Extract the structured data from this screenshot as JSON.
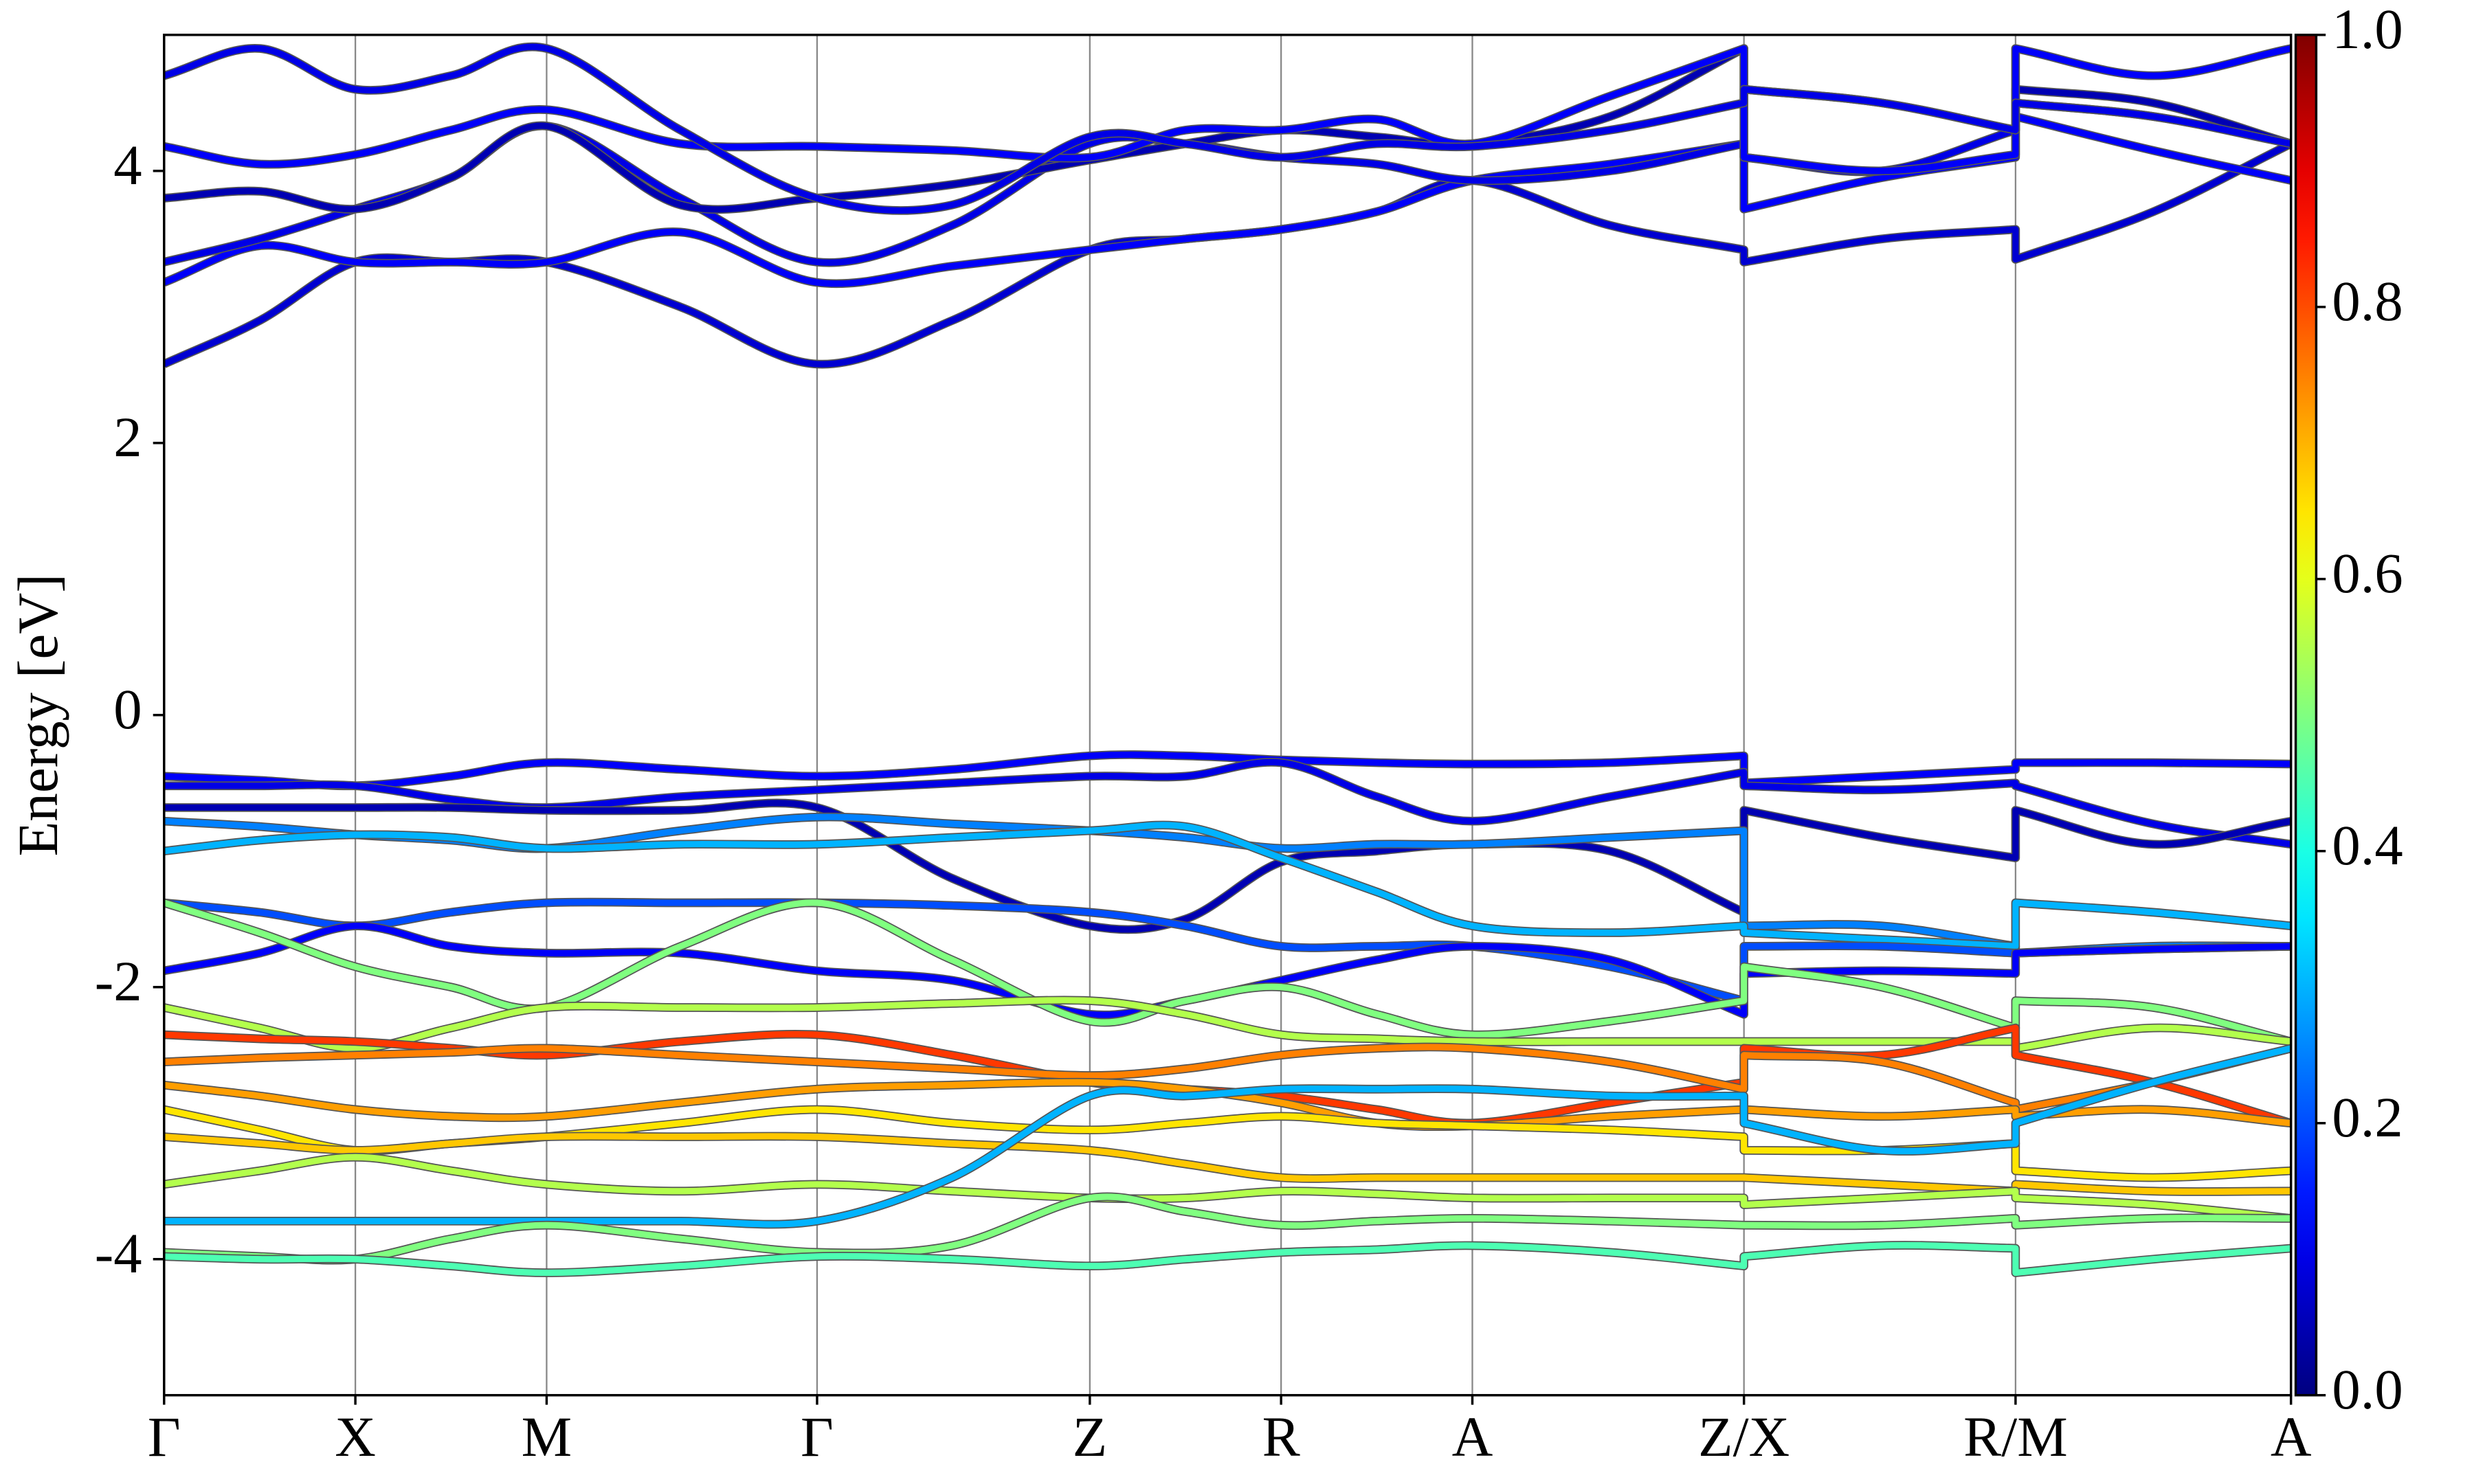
{
  "chart_data": {
    "type": "line",
    "ylabel": "Energy [eV]",
    "x": [
      0,
      0.25,
      0.5,
      0.75,
      1.0,
      1.35,
      1.707,
      2.06,
      2.42,
      2.67,
      2.92,
      3.17,
      3.42,
      3.78,
      4.13,
      4.13,
      4.49,
      4.84,
      4.84,
      5.2,
      5.56
    ],
    "xlim": [
      0,
      5.56
    ],
    "xticks": [
      {
        "value": 0,
        "label": "Γ"
      },
      {
        "value": 0.5,
        "label": "X"
      },
      {
        "value": 1.0,
        "label": "M"
      },
      {
        "value": 1.707,
        "label": "Γ"
      },
      {
        "value": 2.42,
        "label": "Z"
      },
      {
        "value": 2.92,
        "label": "R"
      },
      {
        "value": 3.42,
        "label": "A"
      },
      {
        "value": 4.13,
        "label": "Z/X"
      },
      {
        "value": 4.84,
        "label": "R/M"
      },
      {
        "value": 5.56,
        "label": "A"
      }
    ],
    "ylim": [
      -5,
      5
    ],
    "yticks": [
      -4,
      -2,
      0,
      2,
      4
    ],
    "grid": true,
    "colormap": "jet",
    "colorbar": {
      "lim": [
        0,
        1
      ],
      "ticks": [
        {
          "value": 0,
          "label": "0.0"
        },
        0.2,
        0.4,
        0.6,
        0.8,
        {
          "value": 1,
          "label": "1.0"
        }
      ]
    },
    "series": [
      {
        "weight": 0.08,
        "values": [
          2.58,
          2.9,
          3.33,
          3.33,
          3.33,
          3.0,
          2.58,
          2.9,
          3.42,
          3.5,
          3.57,
          3.7,
          3.93,
          3.6,
          3.42,
          3.33,
          3.5,
          3.57,
          3.35,
          3.7,
          4.2
        ]
      },
      {
        "weight": 0.12,
        "values": [
          3.18,
          3.45,
          3.33,
          3.33,
          3.33,
          3.55,
          3.18,
          3.3,
          3.42,
          3.5,
          3.57,
          3.7,
          3.93,
          4.05,
          4.2,
          3.72,
          3.95,
          4.1,
          4.4,
          4.15,
          3.93
        ]
      },
      {
        "weight": 0.1,
        "values": [
          3.33,
          3.5,
          3.72,
          3.95,
          4.33,
          3.8,
          3.33,
          3.6,
          4.2,
          4.2,
          4.1,
          4.05,
          3.93,
          4.0,
          4.2,
          4.1,
          4.0,
          4.3,
          4.5,
          4.4,
          4.2
        ]
      },
      {
        "weight": 0.05,
        "values": [
          3.8,
          3.85,
          3.72,
          3.95,
          4.33,
          3.75,
          3.8,
          3.9,
          4.08,
          4.2,
          4.3,
          4.25,
          4.2,
          4.4,
          4.9,
          4.6,
          4.5,
          4.3,
          4.6,
          4.5,
          4.2
        ]
      },
      {
        "weight": 0.12,
        "values": [
          4.18,
          4.05,
          4.12,
          4.3,
          4.45,
          4.2,
          4.18,
          4.15,
          4.1,
          4.3,
          4.3,
          4.38,
          4.2,
          4.55,
          4.9,
          4.1,
          4.0,
          4.12,
          4.9,
          4.7,
          4.9
        ]
      },
      {
        "weight": 0.1,
        "values": [
          4.7,
          4.9,
          4.6,
          4.7,
          4.9,
          4.3,
          3.8,
          3.75,
          4.25,
          4.2,
          4.1,
          4.2,
          4.18,
          4.3,
          4.5,
          4.6,
          4.5,
          4.3,
          4.5,
          4.4,
          4.2
        ]
      },
      {
        "weight": 0.12,
        "values": [
          -0.45,
          -0.48,
          -0.52,
          -0.45,
          -0.35,
          -0.4,
          -0.45,
          -0.4,
          -0.3,
          -0.3,
          -0.33,
          -0.35,
          -0.36,
          -0.35,
          -0.3,
          -0.5,
          -0.45,
          -0.4,
          -0.35,
          -0.35,
          -0.36
        ]
      },
      {
        "weight": 0.1,
        "values": [
          -0.52,
          -0.52,
          -0.52,
          -0.62,
          -0.68,
          -0.6,
          -0.55,
          -0.5,
          -0.45,
          -0.45,
          -0.35,
          -0.6,
          -0.78,
          -0.6,
          -0.42,
          -0.52,
          -0.55,
          -0.5,
          -0.52,
          -0.8,
          -0.95
        ]
      },
      {
        "weight": 0.05,
        "values": [
          -0.68,
          -0.68,
          -0.68,
          -0.68,
          -0.7,
          -0.7,
          -0.68,
          -1.2,
          -1.55,
          -1.5,
          -1.08,
          -1.0,
          -0.95,
          -1.0,
          -1.45,
          -0.7,
          -0.9,
          -1.05,
          -0.7,
          -0.95,
          -0.78
        ]
      },
      {
        "weight": 0.25,
        "values": [
          -0.78,
          -0.82,
          -0.88,
          -0.92,
          -0.98,
          -0.85,
          -0.75,
          -0.8,
          -0.85,
          -0.9,
          -0.98,
          -0.95,
          -0.95,
          -0.9,
          -0.85,
          -1.55,
          -1.55,
          -1.7,
          -1.75,
          -1.7,
          -1.7
        ]
      },
      {
        "weight": 0.3,
        "values": [
          -1.0,
          -0.92,
          -0.88,
          -0.9,
          -0.98,
          -0.95,
          -0.95,
          -0.9,
          -0.85,
          -0.82,
          -1.05,
          -1.3,
          -1.55,
          -1.6,
          -1.55,
          -1.6,
          -1.65,
          -1.7,
          -1.38,
          -1.45,
          -1.55
        ]
      },
      {
        "weight": 0.2,
        "values": [
          -1.38,
          -1.45,
          -1.55,
          -1.45,
          -1.38,
          -1.38,
          -1.38,
          -1.4,
          -1.45,
          -1.55,
          -1.7,
          -1.7,
          -1.7,
          -1.85,
          -2.1,
          -1.7,
          -1.7,
          -1.75,
          -1.75,
          -1.72,
          -1.7
        ]
      },
      {
        "weight": 0.12,
        "values": [
          -1.88,
          -1.75,
          -1.55,
          -1.7,
          -1.75,
          -1.75,
          -1.88,
          -1.95,
          -2.2,
          -2.1,
          -1.95,
          -1.8,
          -1.7,
          -1.8,
          -2.2,
          -1.9,
          -1.88,
          -1.9,
          -1.75,
          -1.72,
          -1.7
        ]
      },
      {
        "weight": 0.5,
        "values": [
          -1.38,
          -1.6,
          -1.85,
          -2.0,
          -2.15,
          -1.7,
          -1.38,
          -1.8,
          -2.25,
          -2.1,
          -2.0,
          -2.2,
          -2.35,
          -2.25,
          -2.1,
          -1.85,
          -2.0,
          -2.3,
          -2.1,
          -2.15,
          -2.4
        ]
      },
      {
        "weight": 0.55,
        "values": [
          -2.15,
          -2.3,
          -2.45,
          -2.3,
          -2.15,
          -2.15,
          -2.15,
          -2.12,
          -2.1,
          -2.2,
          -2.35,
          -2.38,
          -2.4,
          -2.4,
          -2.4,
          -2.4,
          -2.4,
          -2.4,
          -2.45,
          -2.3,
          -2.4
        ]
      },
      {
        "weight": 0.82,
        "values": [
          -2.35,
          -2.38,
          -2.4,
          -2.45,
          -2.5,
          -2.4,
          -2.35,
          -2.5,
          -2.7,
          -2.75,
          -2.8,
          -2.9,
          -3.0,
          -2.85,
          -2.7,
          -2.45,
          -2.5,
          -2.3,
          -2.5,
          -2.7,
          -3.0
        ]
      },
      {
        "weight": 0.75,
        "values": [
          -2.55,
          -2.52,
          -2.5,
          -2.48,
          -2.45,
          -2.5,
          -2.55,
          -2.6,
          -2.65,
          -2.6,
          -2.5,
          -2.45,
          -2.45,
          -2.55,
          -2.75,
          -2.5,
          -2.55,
          -2.85,
          -2.9,
          -2.7,
          -2.45
        ]
      },
      {
        "weight": 0.72,
        "values": [
          -2.72,
          -2.8,
          -2.9,
          -2.95,
          -2.95,
          -2.85,
          -2.75,
          -2.72,
          -2.7,
          -2.75,
          -2.85,
          -3.0,
          -3.02,
          -2.95,
          -2.9,
          -2.9,
          -2.95,
          -2.9,
          -2.95,
          -2.9,
          -3.0
        ]
      },
      {
        "weight": 0.65,
        "values": [
          -2.9,
          -3.05,
          -3.2,
          -3.15,
          -3.1,
          -3.0,
          -2.9,
          -3.0,
          -3.05,
          -3.0,
          -2.95,
          -3.0,
          -3.02,
          -3.05,
          -3.1,
          -3.2,
          -3.2,
          -3.15,
          -3.35,
          -3.4,
          -3.35
        ]
      },
      {
        "weight": 0.68,
        "values": [
          -3.1,
          -3.15,
          -3.2,
          -3.15,
          -3.1,
          -3.1,
          -3.1,
          -3.15,
          -3.2,
          -3.3,
          -3.4,
          -3.4,
          -3.4,
          -3.4,
          -3.4,
          -3.4,
          -3.45,
          -3.5,
          -3.45,
          -3.5,
          -3.5
        ]
      },
      {
        "weight": 0.55,
        "values": [
          -3.45,
          -3.35,
          -3.25,
          -3.35,
          -3.45,
          -3.5,
          -3.45,
          -3.5,
          -3.55,
          -3.55,
          -3.5,
          -3.52,
          -3.55,
          -3.55,
          -3.55,
          -3.6,
          -3.55,
          -3.5,
          -3.55,
          -3.6,
          -3.7
        ]
      },
      {
        "weight": 0.3,
        "values": [
          -3.72,
          -3.72,
          -3.72,
          -3.72,
          -3.72,
          -3.72,
          -3.72,
          -3.4,
          -2.8,
          -2.8,
          -2.75,
          -2.75,
          -2.75,
          -2.8,
          -2.8,
          -3.0,
          -3.2,
          -3.15,
          -3.0,
          -2.7,
          -2.45
        ]
      },
      {
        "weight": 0.5,
        "values": [
          -3.95,
          -3.98,
          -4.0,
          -3.85,
          -3.75,
          -3.85,
          -3.95,
          -3.9,
          -3.55,
          -3.65,
          -3.75,
          -3.72,
          -3.7,
          -3.72,
          -3.75,
          -3.75,
          -3.75,
          -3.7,
          -3.75,
          -3.7,
          -3.7
        ]
      },
      {
        "weight": 0.45,
        "values": [
          -3.98,
          -4.0,
          -4.0,
          -4.05,
          -4.1,
          -4.05,
          -3.98,
          -4.0,
          -4.05,
          -4.0,
          -3.95,
          -3.93,
          -3.9,
          -3.95,
          -4.05,
          -3.98,
          -3.9,
          -3.92,
          -4.1,
          -4.0,
          -3.92
        ]
      }
    ]
  }
}
